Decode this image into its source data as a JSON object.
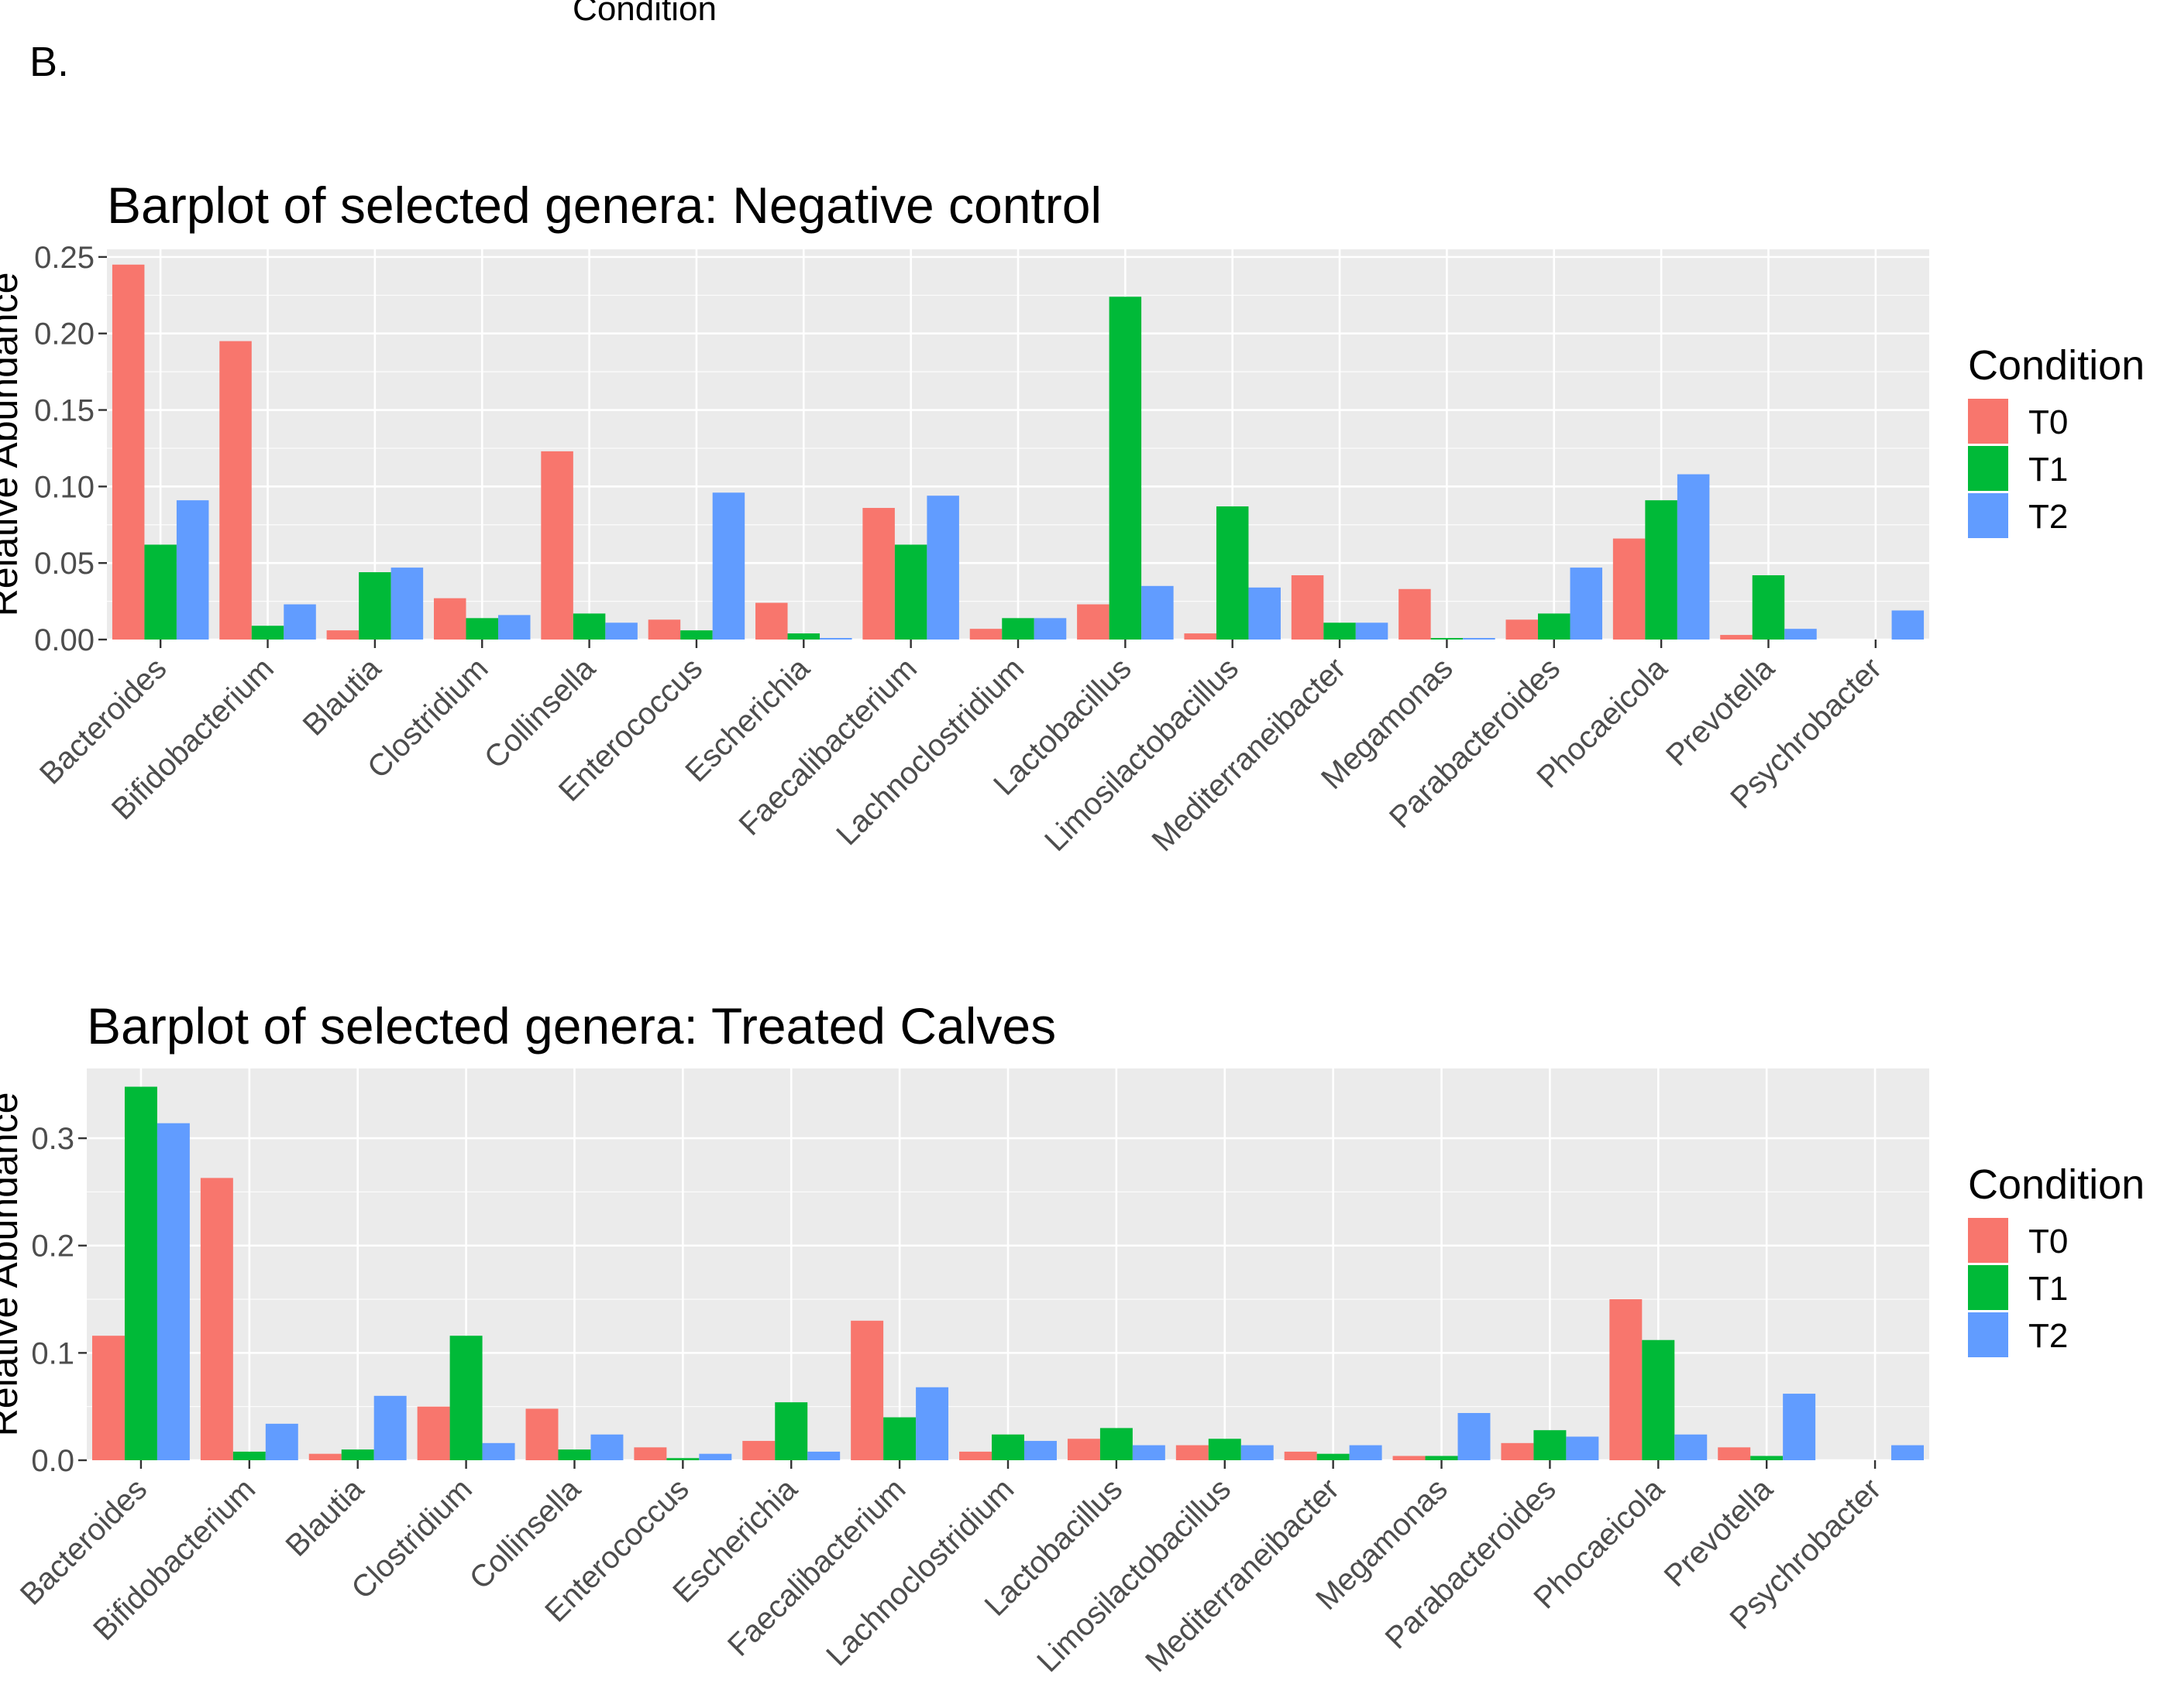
{
  "figure": {
    "panel_label": "B.",
    "cropped_top_text": "Condition"
  },
  "legend": {
    "title": "Condition",
    "entries": [
      "T0",
      "T1",
      "T2"
    ]
  },
  "colors": {
    "T0": "#F8766D",
    "T1": "#00BA38",
    "T2": "#619CFF",
    "panel_bg": "#EBEBEB",
    "grid": "#FFFFFF",
    "text": "#000000",
    "tick_text": "#4D4D4D"
  },
  "chart_data": [
    {
      "type": "bar",
      "title": "Barplot of selected genera: Negative control",
      "ylabel": "Relative Abundance",
      "xlabel": "",
      "ylim": [
        0,
        0.255
      ],
      "yticks": [
        0,
        0.05,
        0.1,
        0.15,
        0.2,
        0.25
      ],
      "ytick_labels": [
        "0.00",
        "0.05",
        "0.10",
        "0.15",
        "0.20",
        "0.25"
      ],
      "grid": true,
      "legend_position": "right",
      "categories": [
        "Bacteroides",
        "Bifidobacterium",
        "Blautia",
        "Clostridium",
        "Collinsella",
        "Enterococcus",
        "Escherichia",
        "Faecalibacterium",
        "Lachnoclostridium",
        "Lactobacillus",
        "Limosilactobacillus",
        "Mediterraneibacter",
        "Megamonas",
        "Parabacteroides",
        "Phocaeicola",
        "Prevotella",
        "Psychrobacter"
      ],
      "series": [
        {
          "name": "T0",
          "values": [
            0.245,
            0.195,
            0.006,
            0.027,
            0.123,
            0.013,
            0.024,
            0.086,
            0.007,
            0.023,
            0.004,
            0.042,
            0.033,
            0.013,
            0.066,
            0.003,
            0.0
          ]
        },
        {
          "name": "T1",
          "values": [
            0.062,
            0.009,
            0.044,
            0.014,
            0.017,
            0.006,
            0.004,
            0.062,
            0.014,
            0.224,
            0.087,
            0.011,
            0.001,
            0.017,
            0.091,
            0.042,
            0.0
          ]
        },
        {
          "name": "T2",
          "values": [
            0.091,
            0.023,
            0.047,
            0.016,
            0.011,
            0.096,
            0.001,
            0.094,
            0.014,
            0.035,
            0.034,
            0.011,
            0.001,
            0.047,
            0.108,
            0.007,
            0.019
          ]
        }
      ]
    },
    {
      "type": "bar",
      "title": "Barplot of selected genera: Treated Calves",
      "ylabel": "Relative Abundance",
      "xlabel": "",
      "ylim": [
        0,
        0.365
      ],
      "yticks": [
        0,
        0.1,
        0.2,
        0.3
      ],
      "ytick_labels": [
        "0.0",
        "0.1",
        "0.2",
        "0.3"
      ],
      "grid": true,
      "legend_position": "right",
      "categories": [
        "Bacteroides",
        "Bifidobacterium",
        "Blautia",
        "Clostridium",
        "Collinsella",
        "Enterococcus",
        "Escherichia",
        "Faecalibacterium",
        "Lachnoclostridium",
        "Lactobacillus",
        "Limosilactobacillus",
        "Mediterraneibacter",
        "Megamonas",
        "Parabacteroides",
        "Phocaeicola",
        "Prevotella",
        "Psychrobacter"
      ],
      "series": [
        {
          "name": "T0",
          "values": [
            0.116,
            0.263,
            0.006,
            0.05,
            0.048,
            0.012,
            0.018,
            0.13,
            0.008,
            0.02,
            0.014,
            0.008,
            0.004,
            0.016,
            0.15,
            0.012,
            0.0
          ]
        },
        {
          "name": "T1",
          "values": [
            0.348,
            0.008,
            0.01,
            0.116,
            0.01,
            0.002,
            0.054,
            0.04,
            0.024,
            0.03,
            0.02,
            0.006,
            0.004,
            0.028,
            0.112,
            0.004,
            0.0
          ]
        },
        {
          "name": "T2",
          "values": [
            0.314,
            0.034,
            0.06,
            0.016,
            0.024,
            0.006,
            0.008,
            0.068,
            0.018,
            0.014,
            0.014,
            0.014,
            0.044,
            0.022,
            0.024,
            0.062,
            0.014
          ]
        }
      ]
    }
  ]
}
